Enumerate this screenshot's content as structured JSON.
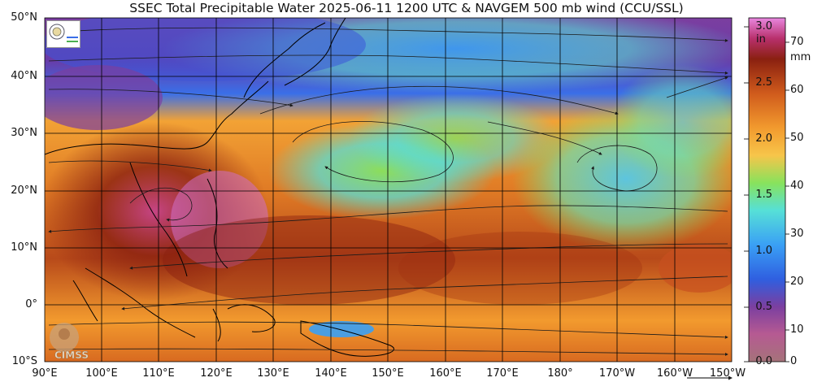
{
  "title": "SSEC Total Precipitable Water  2025-06-11 1200 UTC & NAVGEM 500 mb wind (CCU/SSL)",
  "lat_labels": [
    "50°N",
    "40°N",
    "30°N",
    "20°N",
    "10°N",
    "0°",
    "10°S"
  ],
  "lon_labels": [
    "90°E",
    "100°E",
    "110°E",
    "120°E",
    "130°E",
    "140°E",
    "150°E",
    "160°E",
    "170°E",
    "180°",
    "170°W",
    "160°W",
    "150°W"
  ],
  "colorbar": {
    "unit_in": "in",
    "unit_mm": "mm",
    "in_ticks": [
      "3.0",
      "2.5",
      "2.0",
      "1.5",
      "1.0",
      "0.5",
      "0.0"
    ],
    "mm_ticks": [
      "70",
      "60",
      "50",
      "40",
      "30",
      "20",
      "10",
      "0"
    ],
    "stops": [
      "#a5737a",
      "#b65a92",
      "#7b3fa0",
      "#2f5fe0",
      "#3aa0f5",
      "#56e0d7",
      "#88e25c",
      "#f7c54a",
      "#f29a2e",
      "#d05b1c",
      "#8a2010",
      "#b8306c",
      "#e887e0"
    ]
  },
  "logos": {
    "bottom_text": "CIMSS",
    "top_icon": "ssec-seal-icon"
  },
  "colors": {
    "land_border": "#000000",
    "grid": "#000000",
    "wind": "#1a1a1a"
  }
}
